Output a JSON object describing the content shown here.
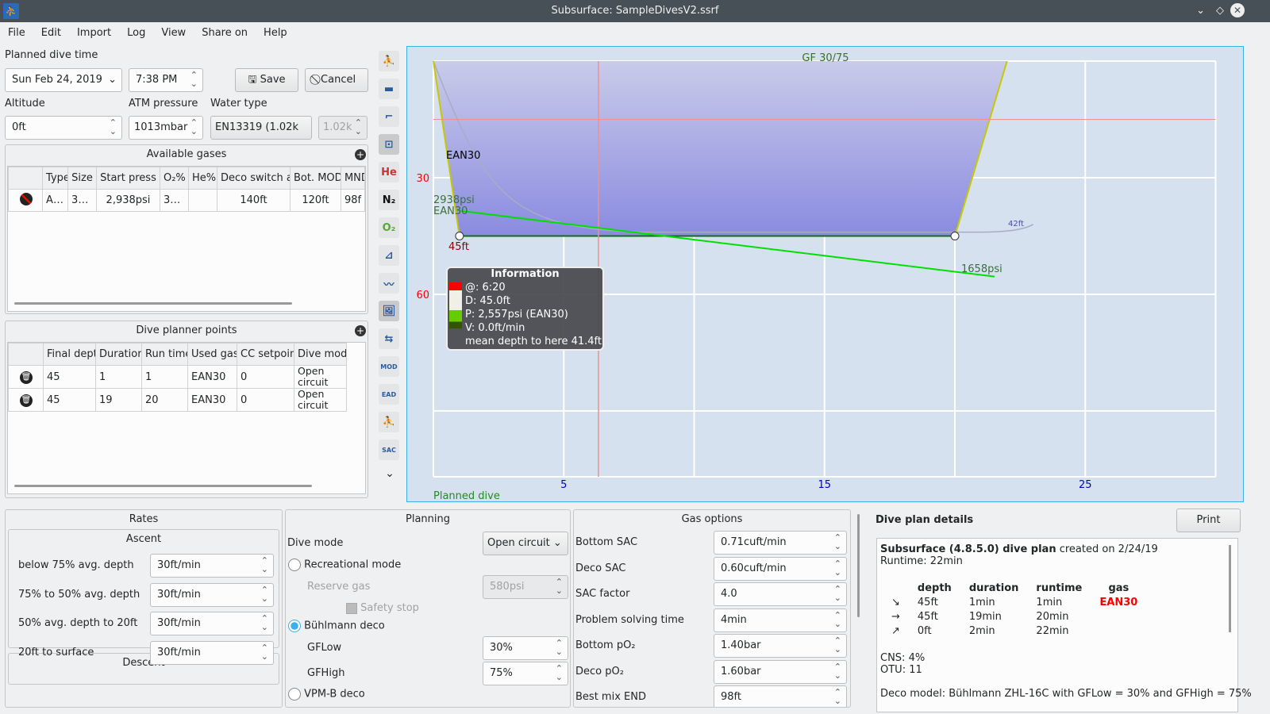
{
  "window": {
    "title": "Subsurface: SampleDivesV2.ssrf"
  },
  "menu": [
    "File",
    "Edit",
    "Import",
    "Log",
    "View",
    "Share on",
    "Help"
  ],
  "top": {
    "planned_label": "Planned dive time",
    "date": "Sun Feb 24, 2019",
    "time": "7:38 PM",
    "save": "Save",
    "cancel": "Cancel",
    "altitude_label": "Altitude",
    "altitude": "0ft",
    "atm_label": "ATM pressure",
    "atm": "1013mbar",
    "water_label": "Water type",
    "water": "EN13319 (1.02k",
    "water_density": "1.02k"
  },
  "gases": {
    "title": "Available gases",
    "headers": [
      "",
      "Type",
      "Size",
      "Start press",
      "O₂%",
      "He%",
      "Deco switch at",
      "Bot. MOD",
      "MND"
    ],
    "rows": [
      [
        "",
        "A…",
        "3…",
        "2,938psi",
        "3…",
        "",
        "140ft",
        "120ft",
        "98f"
      ]
    ]
  },
  "points": {
    "title": "Dive planner points",
    "headers": [
      "",
      "Final depth",
      "Duration",
      "Run time",
      "Used gas",
      "CC setpoint",
      "Dive mode"
    ],
    "rows": [
      [
        "",
        "45",
        "1",
        "1",
        "EAN30",
        "0",
        "Open circuit"
      ],
      [
        "",
        "45",
        "19",
        "20",
        "EAN30",
        "0",
        "Open circuit"
      ]
    ]
  },
  "toolbar": [
    "dive-computer-ceiling",
    "calculated-ceiling-3m",
    "ceiling-increments",
    "tissue-graph",
    "he-pressure",
    "n2-pressure",
    "o2-pressure",
    "ruler",
    "scale-graph",
    "toggle-pictures",
    "gas-switch",
    "mod",
    "ead",
    "npp",
    "sac"
  ],
  "toolbar_text": {
    "he": "He",
    "n2": "N₂",
    "o2": "O₂"
  },
  "chart_data": {
    "type": "line",
    "title": "GF 30/75",
    "footer": "Planned dive",
    "xlim": [
      0,
      30
    ],
    "ylim": [
      0,
      107
    ],
    "y_inverted": true,
    "x_ticks": [
      5,
      15,
      25
    ],
    "y_ticks": [
      30,
      60
    ],
    "grid": true,
    "profile": {
      "x": [
        0,
        1,
        20,
        22
      ],
      "depth": [
        0,
        45,
        45,
        0
      ]
    },
    "pressure": {
      "x": [
        1,
        20
      ],
      "psi": [
        2938,
        1658
      ]
    },
    "labels": {
      "gas": "EAN30",
      "start_press": "2938psi",
      "start_gas": "EAN30",
      "max_depth": "45ft",
      "end_press": "1658psi",
      "ceiling_note": "42ft"
    },
    "cursor_time": 6.33,
    "ceiling_depth": 15,
    "colors": {
      "profile_fill": "#8a8be0",
      "pressure": "#00e000",
      "axis_depth": "#ff0000",
      "axis_time": "#0000c0"
    }
  },
  "tooltip": {
    "title": "Information",
    "lines": [
      "@: 6:20",
      "D: 45.0ft",
      "P: 2,557psi (EAN30)",
      "V: 0.0ft/min",
      "mean depth to here 41.4ft"
    ]
  },
  "rates": {
    "title": "Rates",
    "ascent": "Ascent",
    "rows": [
      [
        "below 75% avg. depth",
        "30ft/min"
      ],
      [
        "75% to 50% avg. depth",
        "30ft/min"
      ],
      [
        "50% avg. depth to 20ft",
        "30ft/min"
      ],
      [
        "20ft to surface",
        "30ft/min"
      ]
    ],
    "descent": "Descent"
  },
  "planning": {
    "title": "Planning",
    "dive_mode_label": "Dive mode",
    "dive_mode": "Open circuit",
    "recreational": "Recreational mode",
    "reserve_label": "Reserve gas",
    "reserve": "580psi",
    "safety": "Safety stop",
    "buhlmann": "Bühlmann deco",
    "gflow_label": "GFLow",
    "gflow": "30%",
    "gfhigh_label": "GFHigh",
    "gfhigh": "75%",
    "vpm": "VPM-B deco"
  },
  "gasopt": {
    "title": "Gas options",
    "rows": [
      [
        "Bottom SAC",
        "0.71cuft/min"
      ],
      [
        "Deco SAC",
        "0.60cuft/min"
      ],
      [
        "SAC factor",
        "4.0"
      ],
      [
        "Problem solving time",
        "4min"
      ],
      [
        "Bottom pO₂",
        "1.40bar"
      ],
      [
        "Deco pO₂",
        "1.60bar"
      ],
      [
        "Best mix END",
        "98ft"
      ]
    ]
  },
  "details": {
    "title": "Dive plan details",
    "print": "Print",
    "heading_bold": "Subsurface (4.8.5.0) dive plan",
    "heading_rest": " created on 2/24/19",
    "runtime": "Runtime: 22min",
    "headers": [
      "depth",
      "duration",
      "runtime",
      "gas"
    ],
    "rows": [
      [
        "↘",
        "45ft",
        "1min",
        "1min",
        "EAN30"
      ],
      [
        "→",
        "45ft",
        "19min",
        "20min",
        ""
      ],
      [
        "↗",
        "0ft",
        "2min",
        "22min",
        ""
      ]
    ],
    "cns": "CNS: 4%",
    "otu": "OTU: 11",
    "deco_model": "Deco model: Bühlmann ZHL-16C with GFLow = 30% and GFHigh = 75%"
  }
}
